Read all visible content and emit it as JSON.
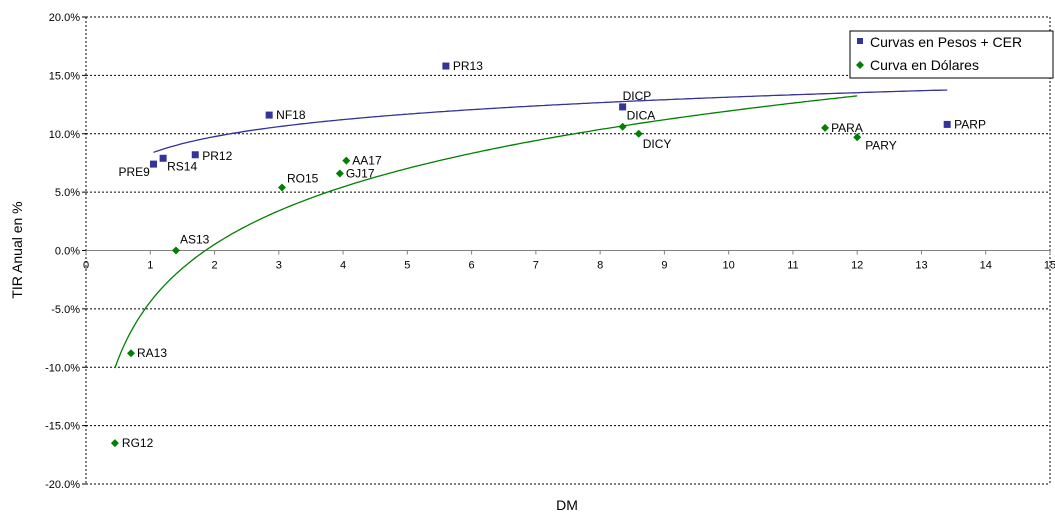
{
  "chart_data": {
    "type": "scatter",
    "xlabel": "DM",
    "ylabel": "TIR Anual en %",
    "xlim": [
      0,
      15
    ],
    "ylim": [
      -20,
      20
    ],
    "x_ticks": [
      "0",
      "1",
      "2",
      "3",
      "4",
      "5",
      "6",
      "7",
      "8",
      "9",
      "10",
      "11",
      "12",
      "13",
      "14",
      "15"
    ],
    "y_ticks": [
      "20.0%",
      "15.0%",
      "10.0%",
      "5.0%",
      "0.0%",
      "-5.0%",
      "-10.0%",
      "-15.0%",
      "-20.0%"
    ],
    "grid": "dotted",
    "legend_position": "top-right",
    "series": [
      {
        "name": "Curvas en Pesos + CER",
        "marker": "square",
        "color": "#333399",
        "points": [
          {
            "label": "PRE9",
            "x": 1.05,
            "y": 7.4
          },
          {
            "label": "RS14",
            "x": 1.2,
            "y": 7.9
          },
          {
            "label": "PR12",
            "x": 1.7,
            "y": 8.2
          },
          {
            "label": "NF18",
            "x": 2.85,
            "y": 11.6
          },
          {
            "label": "PR13",
            "x": 5.6,
            "y": 15.8
          },
          {
            "label": "DICP",
            "x": 8.35,
            "y": 12.3
          },
          {
            "label": "PARP",
            "x": 13.4,
            "y": 10.8
          }
        ]
      },
      {
        "name": "Curva en Dólares",
        "marker": "diamond",
        "color": "#008000",
        "points": [
          {
            "label": "RG12",
            "x": 0.45,
            "y": -16.5
          },
          {
            "label": "RA13",
            "x": 0.7,
            "y": -8.8
          },
          {
            "label": "AS13",
            "x": 1.4,
            "y": 0.0
          },
          {
            "label": "RO15",
            "x": 3.05,
            "y": 5.4
          },
          {
            "label": "GJ17",
            "x": 3.95,
            "y": 6.6
          },
          {
            "label": "AA17",
            "x": 4.05,
            "y": 7.7
          },
          {
            "label": "DICA",
            "x": 8.35,
            "y": 10.6
          },
          {
            "label": "DICY",
            "x": 8.6,
            "y": 10.0
          },
          {
            "label": "PARA",
            "x": 11.5,
            "y": 10.5
          },
          {
            "label": "PARY",
            "x": 12.0,
            "y": 9.7
          }
        ]
      }
    ],
    "trendlines": [
      {
        "series": "Curvas en Pesos + CER",
        "type": "logarithmic",
        "color": "#333399",
        "x_from": 1.05,
        "x_to": 13.4,
        "a": 8.3,
        "b": 2.1
      },
      {
        "series": "Curva en Dólares",
        "type": "logarithmic",
        "color": "#008000",
        "x_from": 0.45,
        "x_to": 12.0,
        "a": -4.4,
        "b": 7.1
      }
    ]
  }
}
